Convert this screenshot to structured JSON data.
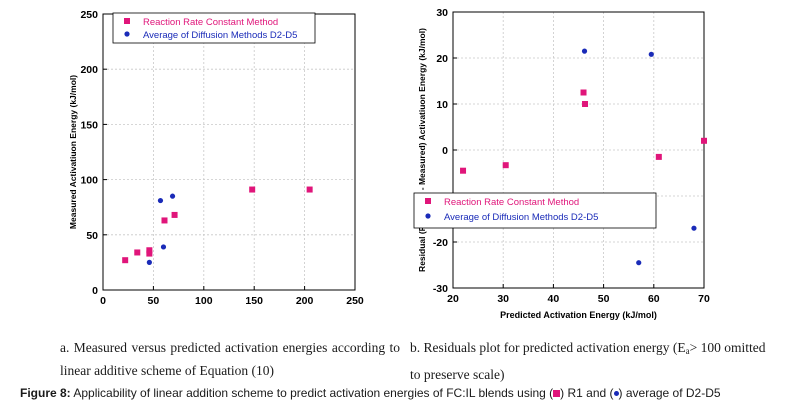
{
  "colors": {
    "series_r1": "#e0157a",
    "series_diffusion": "#1a2bb8",
    "axis": "#000000",
    "grid": "#c8c8c8"
  },
  "chart_data": [
    {
      "type": "scatter",
      "panel": "a",
      "title": "",
      "xlabel": "",
      "ylabel": "Measured Activatiuon Energy (kJ/mol)",
      "xlim": [
        0,
        250
      ],
      "ylim": [
        0,
        250
      ],
      "xticks": [
        0,
        50,
        100,
        150,
        200,
        250
      ],
      "yticks": [
        0,
        50,
        100,
        150,
        200,
        250
      ],
      "grid": true,
      "legend": "top-right",
      "series": [
        {
          "name": "Reaction Rate Constant Method",
          "marker": "square",
          "color": "#e0157a",
          "x": [
            22,
            34,
            46,
            46,
            61,
            71,
            148,
            205
          ],
          "y": [
            27,
            34,
            36,
            33,
            63,
            68,
            91,
            91
          ]
        },
        {
          "name": "Average of Diffusion Methods D2-D5",
          "marker": "circle",
          "color": "#1a2bb8",
          "x": [
            46,
            57,
            60,
            69
          ],
          "y": [
            25,
            81,
            39,
            85
          ]
        }
      ]
    },
    {
      "type": "scatter",
      "panel": "b",
      "title": "",
      "xlabel": "Predicted Activation Energy (kJ/mol)",
      "ylabel": "Residual (Predicted - Measured) Activatiuon Energy (kJ/mol)",
      "xlim": [
        20,
        70
      ],
      "ylim": [
        -30,
        30
      ],
      "xticks": [
        20,
        30,
        40,
        50,
        60,
        70
      ],
      "yticks": [
        -30,
        -20,
        -10,
        0,
        10,
        20,
        30
      ],
      "grid": true,
      "legend": "bottom-left",
      "series": [
        {
          "name": "Reaction Rate Constant Method",
          "marker": "square",
          "color": "#e0157a",
          "x": [
            22,
            30.5,
            46,
            46.3,
            61,
            70
          ],
          "y": [
            -4.5,
            -3.3,
            12.5,
            10,
            -1.5,
            2
          ]
        },
        {
          "name": "Average of Diffusion Methods D2-D5",
          "marker": "circle",
          "color": "#1a2bb8",
          "x": [
            46.2,
            59.5,
            57,
            68
          ],
          "y": [
            21.5,
            20.8,
            -24.5,
            -17
          ]
        }
      ]
    }
  ],
  "captions": {
    "a": "a.  Measured versus predicted activation energies according to linear additive scheme of Equation (10)",
    "b_prefix": "b. Residuals plot for predicted activation energy (E",
    "b_subscript": "a",
    "b_suffix": "> 100 omitted to preserve scale)"
  },
  "figure_caption": {
    "label": "Figure 8:",
    "text_before": " Applicability of linear addition scheme to predict activation energies of FC:IL blends using (",
    "text_middle": ") R1 and (",
    "text_after": ") average of D2-D5"
  }
}
